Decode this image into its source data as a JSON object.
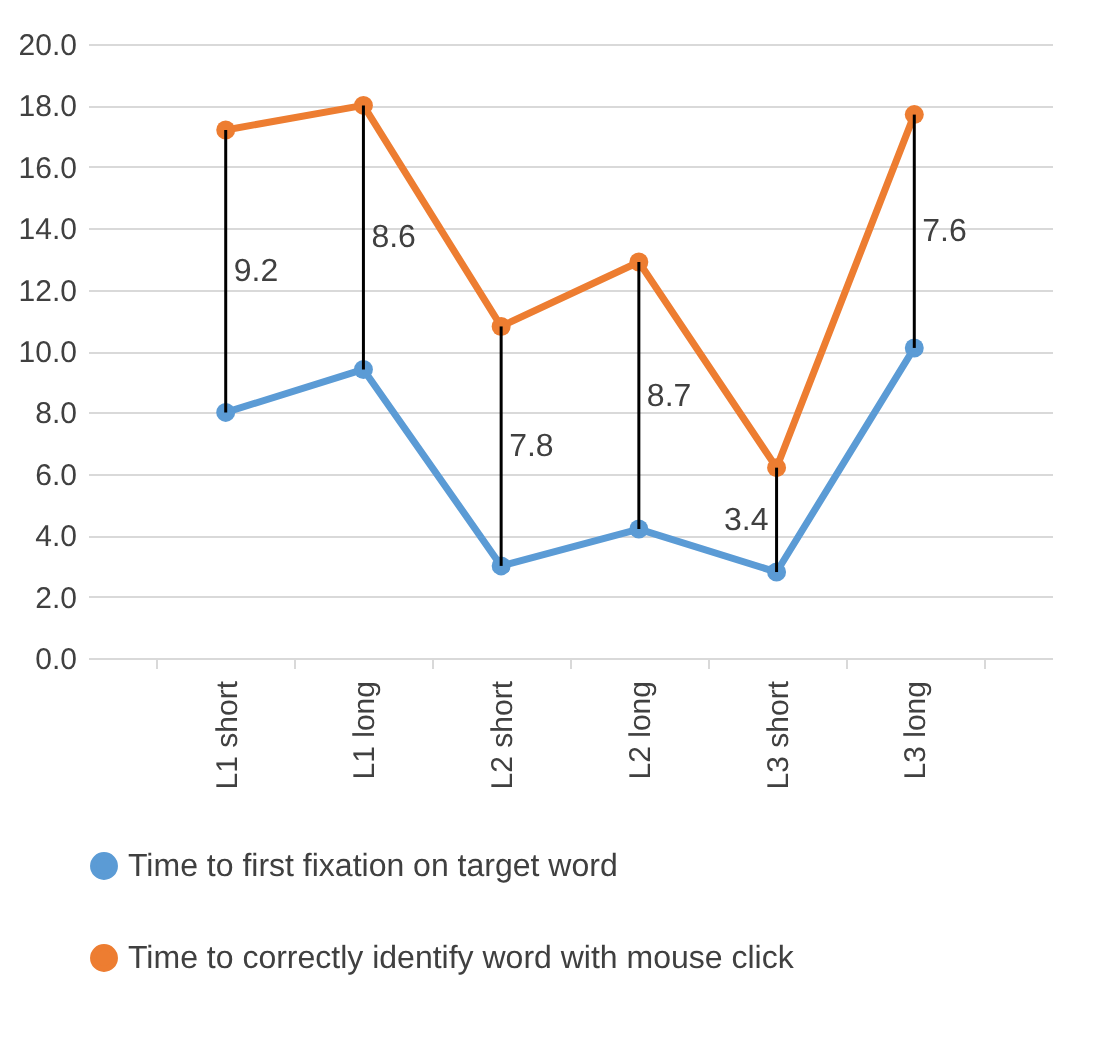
{
  "chart_data": {
    "type": "line",
    "categories": [
      "L1 short",
      "L1 long",
      "L2 short",
      "L2 long",
      "L3 short",
      "L3 long"
    ],
    "series": [
      {
        "name": "Time to first fixation on target word",
        "color": "#5b9bd5",
        "values": [
          8.0,
          9.4,
          3.0,
          4.2,
          2.8,
          10.1
        ]
      },
      {
        "name": "Time to correctly identify word with mouse click",
        "color": "#ed7d31",
        "values": [
          17.2,
          18.0,
          10.8,
          12.9,
          6.2,
          17.7
        ]
      },
      {
        "type": "bar",
        "color": "#000000",
        "base": [
          8.0,
          9.4,
          3.0,
          4.2,
          2.8,
          10.1
        ],
        "values": [
          9.2,
          8.6,
          7.8,
          8.7,
          3.4,
          7.6
        ],
        "value_labels": [
          "9.2",
          "8.6",
          "7.8",
          "8.7",
          "3.4",
          "7.6"
        ]
      }
    ],
    "ylim": [
      0,
      20
    ],
    "yticks": [
      {
        "value": 0,
        "label": "0.0"
      },
      {
        "value": 2,
        "label": "2.0"
      },
      {
        "value": 4,
        "label": "4.0"
      },
      {
        "value": 6,
        "label": "6.0"
      },
      {
        "value": 8,
        "label": "8.0"
      },
      {
        "value": 10,
        "label": "10.0"
      },
      {
        "value": 12,
        "label": "12.0"
      },
      {
        "value": 14,
        "label": "14.0"
      },
      {
        "value": 16,
        "label": "16.0"
      },
      {
        "value": 18,
        "label": "18.0"
      },
      {
        "value": 20,
        "label": "20.0"
      }
    ],
    "grid": "y",
    "legend": "bottom",
    "marker": "circle",
    "line_style": "solid"
  }
}
